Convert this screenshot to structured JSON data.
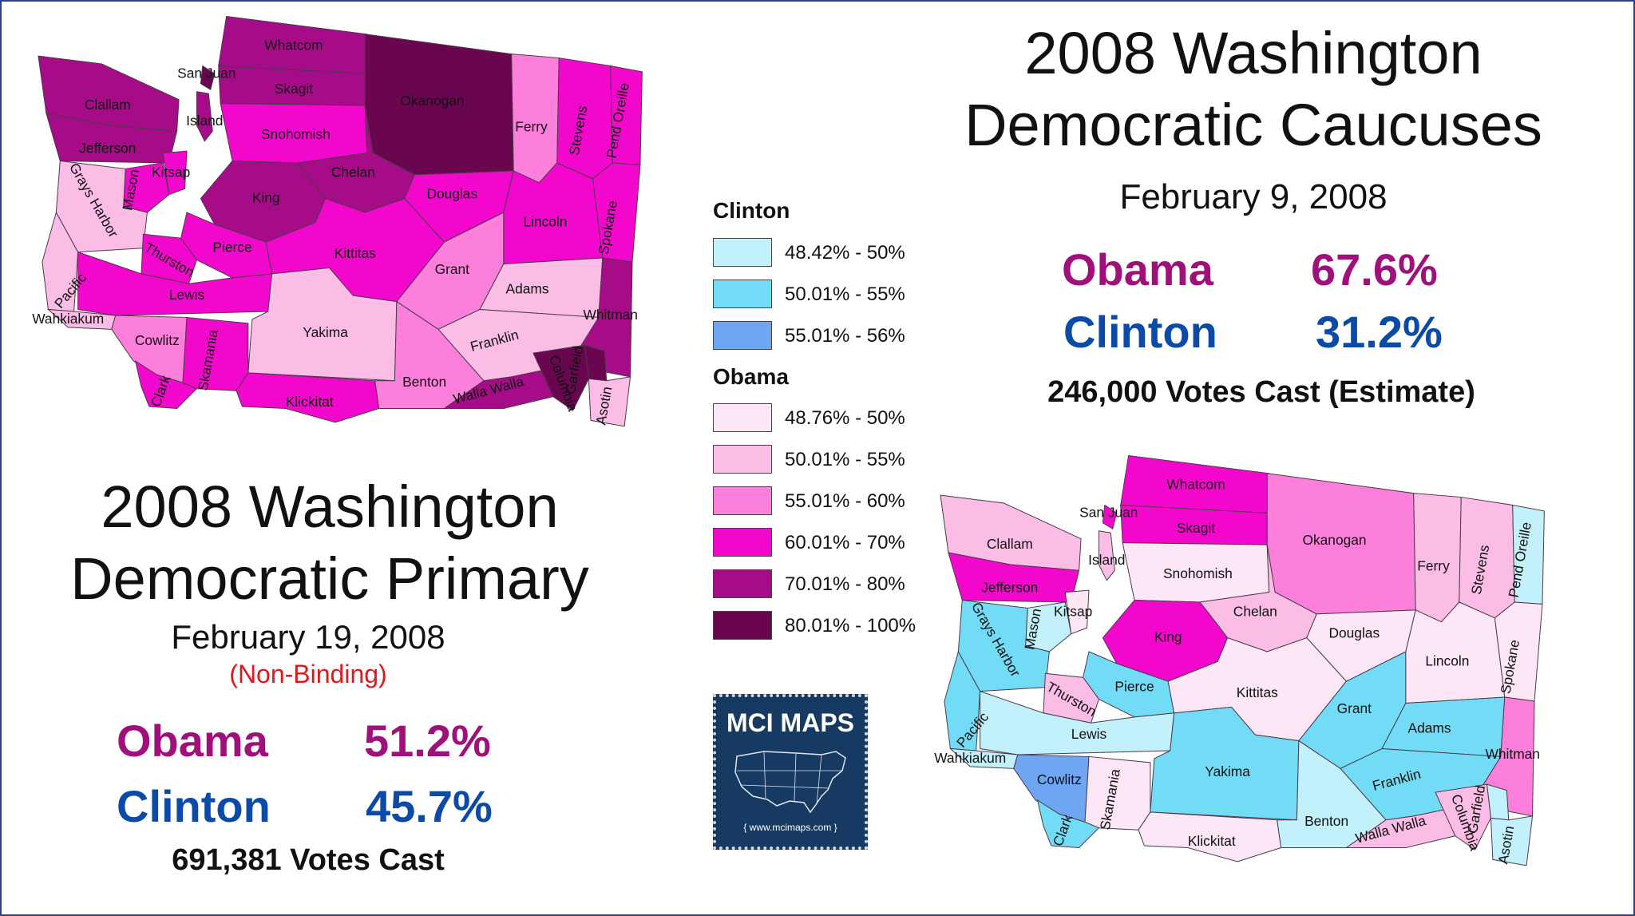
{
  "primary": {
    "title_line1": "2008 Washington",
    "title_line2": "Democratic Primary",
    "date": "February 19, 2008",
    "note": "(Non-Binding)",
    "results": [
      {
        "candidate": "Obama",
        "pct": "51.2%",
        "color": "#a0107a"
      },
      {
        "candidate": "Clinton",
        "pct": "45.7%",
        "color": "#0b4aa6"
      }
    ],
    "votes": "691,381 Votes Cast"
  },
  "caucus": {
    "title_line1": "2008 Washington",
    "title_line2": "Democratic Caucuses",
    "date": "February 9, 2008",
    "results": [
      {
        "candidate": "Obama",
        "pct": "67.6%",
        "color": "#a0107a"
      },
      {
        "candidate": "Clinton",
        "pct": "31.2%",
        "color": "#0b4aa6"
      }
    ],
    "votes": "246,000 Votes Cast (Estimate)"
  },
  "legend": {
    "clinton_title": "Clinton",
    "clinton": [
      {
        "label": "48.42% - 50%",
        "color": "#c2f0fb"
      },
      {
        "label": "50.01% - 55%",
        "color": "#72dcf6"
      },
      {
        "label": "55.01% - 56%",
        "color": "#6fa6f4"
      }
    ],
    "obama_title": "Obama",
    "obama": [
      {
        "label": "48.76% - 50%",
        "color": "#fde6f5"
      },
      {
        "label": "50.01% - 55%",
        "color": "#fbbde6"
      },
      {
        "label": "55.01% - 60%",
        "color": "#fb7fdb"
      },
      {
        "label": "60.01% - 70%",
        "color": "#f407cc"
      },
      {
        "label": "70.01% - 80%",
        "color": "#a60c88"
      },
      {
        "label": "80.01% - 100%",
        "color": "#6a0650"
      }
    ]
  },
  "logo": {
    "title": "MCI MAPS",
    "url": "www.mcimaps.com"
  },
  "primary_map_counties": [
    {
      "name": "San Juan",
      "color": "#6a0650"
    },
    {
      "name": "Whatcom",
      "color": "#a60c88"
    },
    {
      "name": "Skagit",
      "color": "#a60c88"
    },
    {
      "name": "Okanogan",
      "color": "#6a0650"
    },
    {
      "name": "Ferry",
      "color": "#fb7fdb"
    },
    {
      "name": "Stevens",
      "color": "#f407cc"
    },
    {
      "name": "Pend Oreille",
      "color": "#f407cc"
    },
    {
      "name": "Clallam",
      "color": "#a60c88"
    },
    {
      "name": "Island",
      "color": "#a60c88"
    },
    {
      "name": "Snohomish",
      "color": "#f407cc"
    },
    {
      "name": "Jefferson",
      "color": "#a60c88"
    },
    {
      "name": "Chelan",
      "color": "#a60c88"
    },
    {
      "name": "Kitsap",
      "color": "#f407cc"
    },
    {
      "name": "Mason",
      "color": "#f407cc"
    },
    {
      "name": "Douglas",
      "color": "#f407cc"
    },
    {
      "name": "Grays Harbor",
      "color": "#fbbde6"
    },
    {
      "name": "King",
      "color": "#a60c88"
    },
    {
      "name": "Pierce",
      "color": "#f407cc"
    },
    {
      "name": "Lincoln",
      "color": "#f407cc"
    },
    {
      "name": "Spokane",
      "color": "#f407cc"
    },
    {
      "name": "Thurston",
      "color": "#f407cc"
    },
    {
      "name": "Kittitas",
      "color": "#f407cc"
    },
    {
      "name": "Grant",
      "color": "#fb7fdb"
    },
    {
      "name": "Pacific",
      "color": "#fbbde6"
    },
    {
      "name": "Adams",
      "color": "#fbbde6"
    },
    {
      "name": "Lewis",
      "color": "#f407cc"
    },
    {
      "name": "Whitman",
      "color": "#a60c88"
    },
    {
      "name": "Wahkiakum",
      "color": "#fbbde6"
    },
    {
      "name": "Cowlitz",
      "color": "#fb7fdb"
    },
    {
      "name": "Yakima",
      "color": "#fbbde6"
    },
    {
      "name": "Franklin",
      "color": "#fbbde6"
    },
    {
      "name": "Skamania",
      "color": "#f407cc"
    },
    {
      "name": "Garfield",
      "color": "#6a0650"
    },
    {
      "name": "Clark",
      "color": "#f407cc"
    },
    {
      "name": "Benton",
      "color": "#fb7fdb"
    },
    {
      "name": "Walla Walla",
      "color": "#a60c88"
    },
    {
      "name": "Columbia",
      "color": "#6a0650"
    },
    {
      "name": "Klickitat",
      "color": "#f407cc"
    },
    {
      "name": "Asotin",
      "color": "#fbbde6"
    }
  ],
  "caucus_map_counties": [
    {
      "name": "San Juan",
      "color": "#f407cc"
    },
    {
      "name": "Whatcom",
      "color": "#f407cc"
    },
    {
      "name": "Skagit",
      "color": "#f407cc"
    },
    {
      "name": "Okanogan",
      "color": "#fb7fdb"
    },
    {
      "name": "Ferry",
      "color": "#fbbde6"
    },
    {
      "name": "Stevens",
      "color": "#fbbde6"
    },
    {
      "name": "Pend Oreille",
      "color": "#c2f0fb"
    },
    {
      "name": "Clallam",
      "color": "#fbbde6"
    },
    {
      "name": "Island",
      "color": "#fbbde6"
    },
    {
      "name": "Snohomish",
      "color": "#fde6f5"
    },
    {
      "name": "Jefferson",
      "color": "#f407cc"
    },
    {
      "name": "Chelan",
      "color": "#fbbde6"
    },
    {
      "name": "Kitsap",
      "color": "#fde6f5"
    },
    {
      "name": "Mason",
      "color": "#c2f0fb"
    },
    {
      "name": "Douglas",
      "color": "#fde6f5"
    },
    {
      "name": "Grays Harbor",
      "color": "#72dcf6"
    },
    {
      "name": "King",
      "color": "#f407cc"
    },
    {
      "name": "Pierce",
      "color": "#72dcf6"
    },
    {
      "name": "Lincoln",
      "color": "#fde6f5"
    },
    {
      "name": "Spokane",
      "color": "#fde6f5"
    },
    {
      "name": "Thurston",
      "color": "#fbbde6"
    },
    {
      "name": "Kittitas",
      "color": "#fde6f5"
    },
    {
      "name": "Grant",
      "color": "#72dcf6"
    },
    {
      "name": "Pacific",
      "color": "#72dcf6"
    },
    {
      "name": "Adams",
      "color": "#72dcf6"
    },
    {
      "name": "Lewis",
      "color": "#c2f0fb"
    },
    {
      "name": "Whitman",
      "color": "#fb7fdb"
    },
    {
      "name": "Wahkiakum",
      "color": "#c2f0fb"
    },
    {
      "name": "Cowlitz",
      "color": "#6fa6f4"
    },
    {
      "name": "Yakima",
      "color": "#72dcf6"
    },
    {
      "name": "Franklin",
      "color": "#72dcf6"
    },
    {
      "name": "Skamania",
      "color": "#fde6f5"
    },
    {
      "name": "Garfield",
      "color": "#c2f0fb"
    },
    {
      "name": "Clark",
      "color": "#72dcf6"
    },
    {
      "name": "Benton",
      "color": "#c2f0fb"
    },
    {
      "name": "Walla Walla",
      "color": "#fbbde6"
    },
    {
      "name": "Columbia",
      "color": "#fbbde6"
    },
    {
      "name": "Klickitat",
      "color": "#fde6f5"
    },
    {
      "name": "Asotin",
      "color": "#c2f0fb"
    }
  ]
}
